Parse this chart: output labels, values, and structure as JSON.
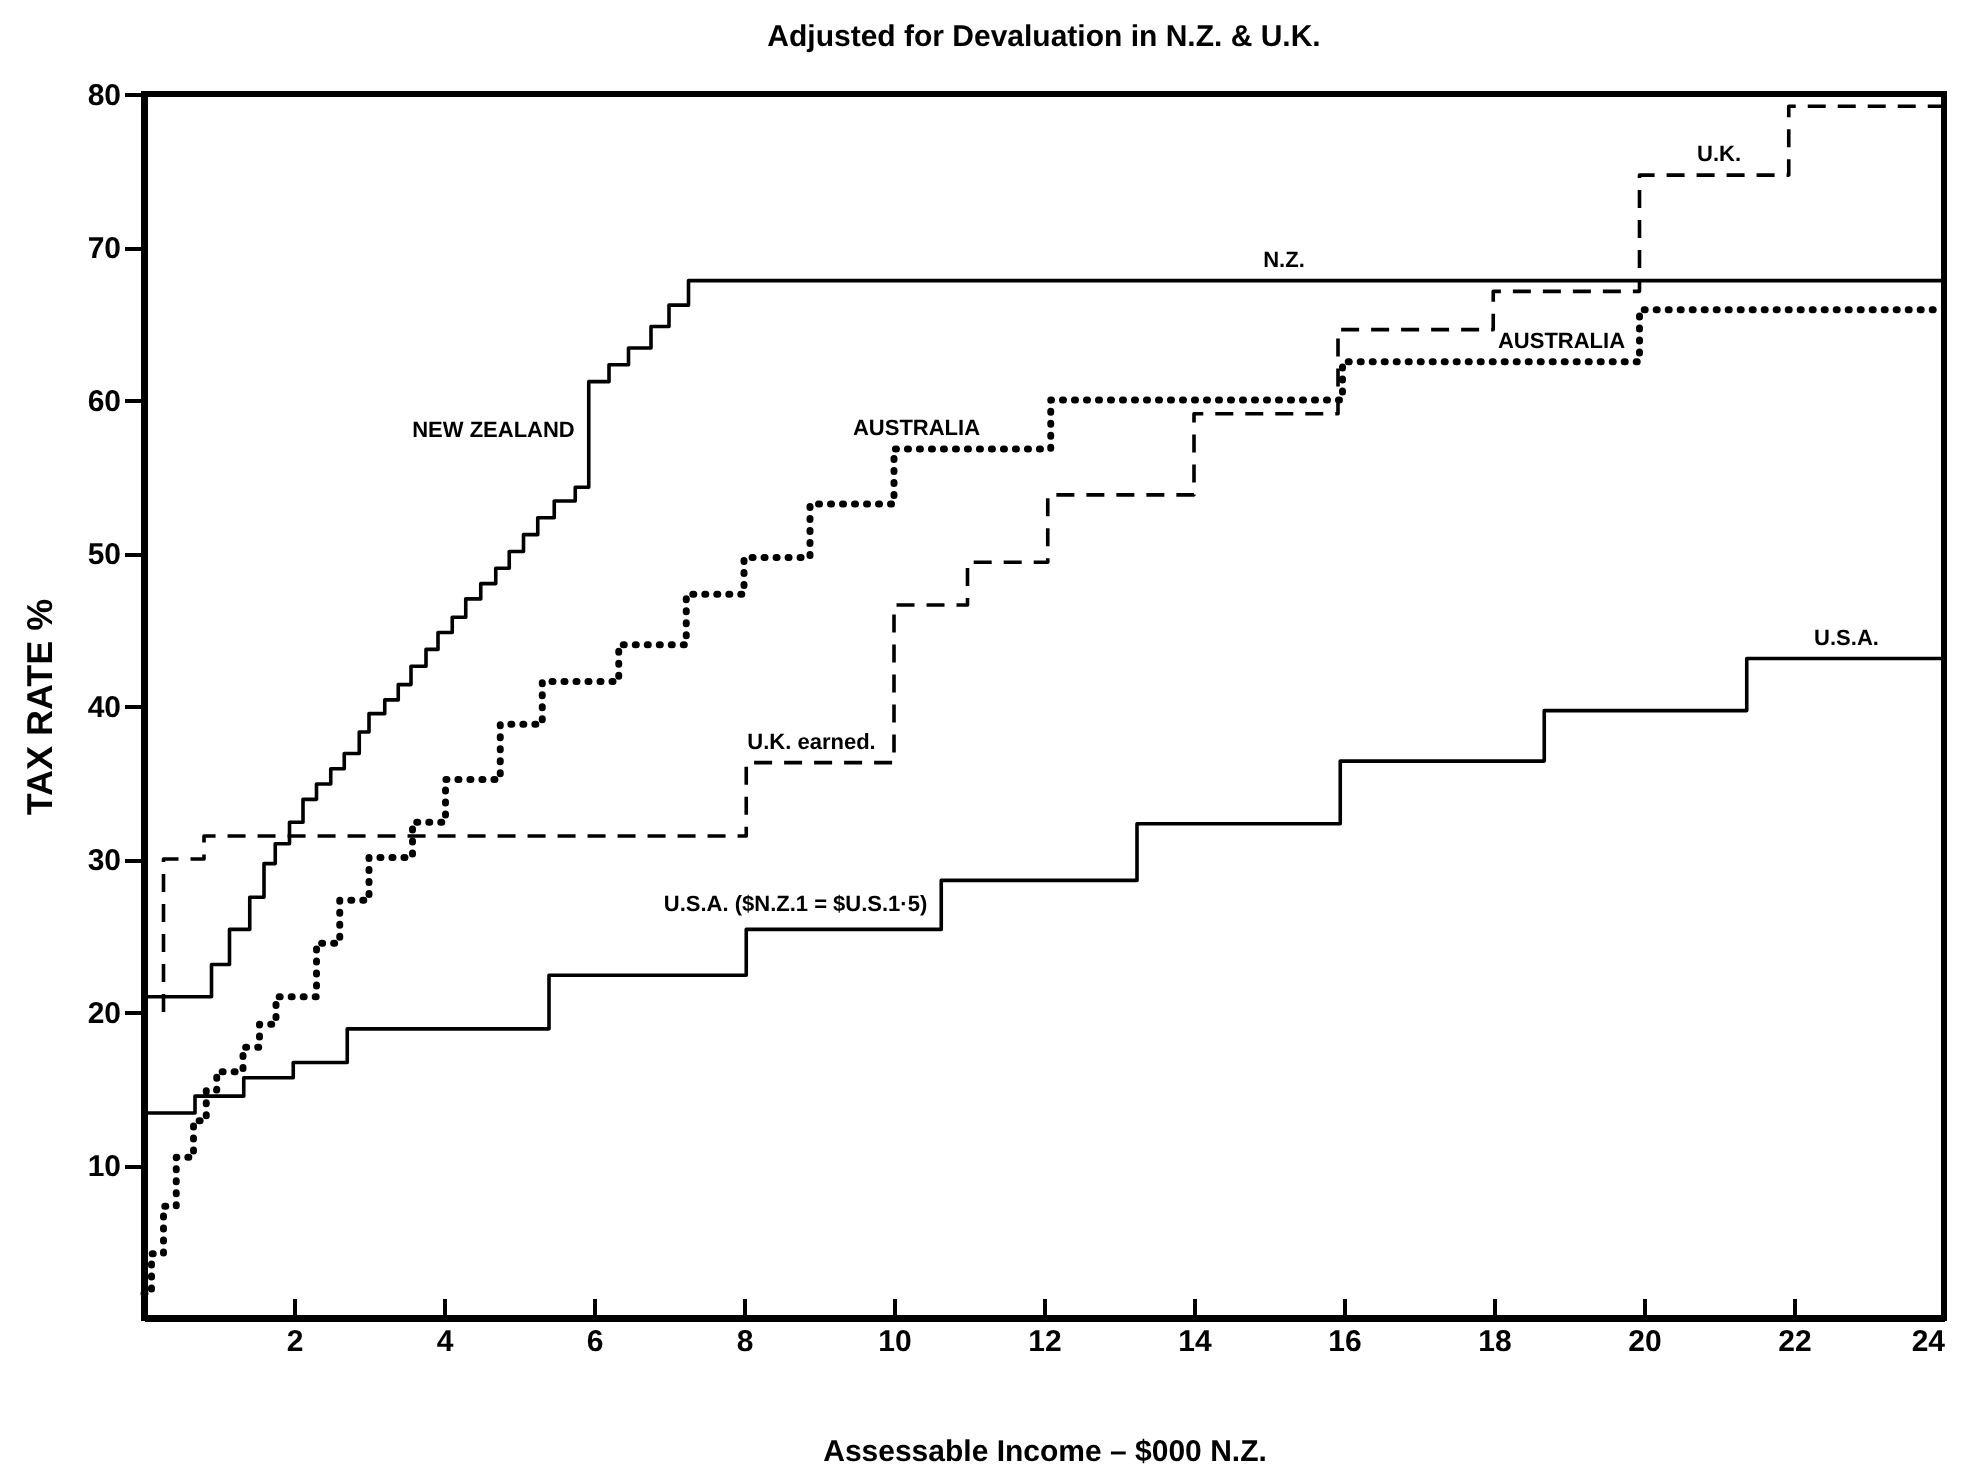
{
  "chart_data": {
    "type": "step",
    "title": "Adjusted for Devaluation in N.Z. & U.K.",
    "xlabel": "Assessable Income – $000 N.Z.",
    "ylabel": "TAX RATE %",
    "xlim": [
      0,
      24
    ],
    "xticks": [
      2,
      4,
      6,
      8,
      10,
      12,
      14,
      16,
      18,
      20,
      22,
      24
    ],
    "ylim": [
      0,
      80
    ],
    "yticks": [
      10,
      20,
      30,
      40,
      50,
      60,
      70,
      80
    ],
    "series": [
      {
        "color": "#000000",
        "line_style": "solid",
        "x": [
          0,
          0.9,
          1.14,
          1.41,
          1.6,
          1.75,
          1.94,
          2.12,
          2.3,
          2.49,
          2.67,
          2.87,
          3.0,
          3.21,
          3.39,
          3.56,
          3.76,
          3.92,
          4.11,
          4.29,
          4.49,
          4.69,
          4.87,
          5.06,
          5.25,
          5.47,
          5.75,
          5.93,
          6.2,
          6.46,
          6.76,
          7.0,
          7.26,
          24
        ],
        "values": [
          21.0,
          23.1,
          25.4,
          27.5,
          29.7,
          31.0,
          32.4,
          33.9,
          34.9,
          35.9,
          36.9,
          38.3,
          39.5,
          40.4,
          41.4,
          42.6,
          43.7,
          44.8,
          45.8,
          47.0,
          48.0,
          49.0,
          50.1,
          51.2,
          52.3,
          53.4,
          54.3,
          61.2,
          62.3,
          63.4,
          64.8,
          66.2,
          67.8,
          67.8
        ]
      },
      {
        "color": "#000000",
        "line_style": "dotted",
        "x": [
          0,
          0.1,
          0.26,
          0.43,
          0.66,
          0.83,
          0.97,
          1.32,
          1.54,
          1.76,
          2.3,
          2.61,
          3.0,
          3.58,
          4.02,
          4.75,
          5.31,
          6.33,
          7.23,
          8.0,
          8.88,
          10.0,
          12.09,
          15.98,
          19.94,
          24
        ],
        "values": [
          1.6,
          4.2,
          7.3,
          10.5,
          12.9,
          14.9,
          16.1,
          17.7,
          19.2,
          21.0,
          24.5,
          27.3,
          30.1,
          32.4,
          35.2,
          38.8,
          41.6,
          44.0,
          47.3,
          49.7,
          53.2,
          56.8,
          60.0,
          62.5,
          65.9,
          65.9
        ]
      },
      {
        "color": "#000000",
        "line_style": "dashed",
        "x": [
          0.26,
          0.26,
          0.8,
          8.03,
          10.0,
          10.98,
          12.05,
          14.0,
          15.92,
          17.99,
          19.94,
          21.93,
          24
        ],
        "values": [
          20,
          30,
          31.5,
          36.3,
          46.6,
          49.4,
          53.8,
          59.1,
          64.6,
          67.1,
          74.7,
          79.2,
          79.2
        ]
      },
      {
        "color": "#000000",
        "line_style": "solid",
        "x": [
          0,
          0.68,
          1.33,
          1.99,
          2.71,
          5.4,
          8.03,
          10.63,
          13.24,
          15.95,
          18.67,
          21.37,
          24
        ],
        "values": [
          13.4,
          14.5,
          15.7,
          16.7,
          18.9,
          22.4,
          25.4,
          28.6,
          32.3,
          36.4,
          39.7,
          43.1,
          43.1
        ]
      }
    ],
    "annotations": [
      {
        "text": "NEW ZEALAND",
        "x": 5.93,
        "y": 58
      },
      {
        "text": "AUSTRALIA",
        "x": 10.3,
        "y": 56.8
      },
      {
        "text": "N.Z.",
        "x": 15.2,
        "y": 67.8
      },
      {
        "text": "U.K.",
        "x": 21.0,
        "y": 74.7
      },
      {
        "text": "AUSTRALIA",
        "x": 18.9,
        "y": 62.5
      },
      {
        "text": "U.K. earned.",
        "x": 8.9,
        "y": 36.3
      },
      {
        "text": "U.S.A.",
        "x": 22.7,
        "y": 43.1
      },
      {
        "text": "U.S.A. ($N.Z.1 = $U.S.1·5)",
        "x": 10.63,
        "y": 27
      }
    ]
  }
}
